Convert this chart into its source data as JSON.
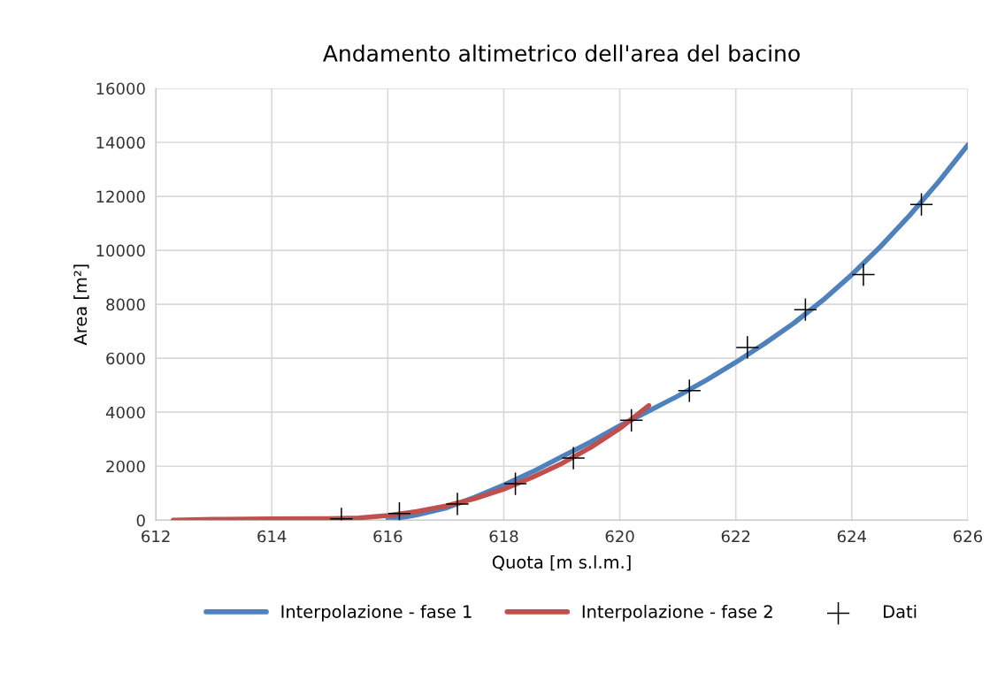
{
  "chart_data": {
    "type": "line",
    "title": "Andamento altimetrico dell'area del bacino",
    "xlabel": "Quota [m s.l.m.]",
    "ylabel": "Area [m²]",
    "xlim": [
      612,
      626
    ],
    "xticks": [
      612,
      614,
      616,
      618,
      620,
      622,
      624,
      626
    ],
    "ylim": [
      0,
      16000
    ],
    "yticks": [
      0,
      2000,
      4000,
      6000,
      8000,
      10000,
      12000,
      14000,
      16000
    ],
    "grid": true,
    "legend": "bottom",
    "series": [
      {
        "name": "Interpolazione - fase 1",
        "color": "#4f81bd",
        "marker": "none",
        "x": [
          616,
          616.5,
          617,
          617.5,
          618,
          618.5,
          619,
          619.5,
          620,
          620.5,
          621,
          621.5,
          622,
          622.5,
          623,
          623.5,
          624,
          624.5,
          625,
          625.5,
          626
        ],
        "values": [
          0,
          200,
          450,
          850,
          1300,
          1800,
          2350,
          2900,
          3500,
          4050,
          4600,
          5200,
          5850,
          6550,
          7300,
          8150,
          9100,
          10150,
          11300,
          12550,
          13900
        ]
      },
      {
        "name": "Interpolazione - fase 2",
        "color": "#c0504d",
        "marker": "none",
        "x": [
          612.3,
          613,
          614,
          615,
          615.5,
          616,
          616.5,
          617,
          617.5,
          618,
          618.5,
          619,
          619.5,
          620,
          620.5
        ],
        "values": [
          0,
          30,
          50,
          60,
          80,
          170,
          320,
          530,
          800,
          1150,
          1600,
          2100,
          2700,
          3400,
          4250
        ]
      },
      {
        "name": "Dati",
        "type": "scatter",
        "color": "#000000",
        "marker": "cross",
        "x": [
          615.2,
          616.2,
          617.2,
          618.2,
          619.2,
          620.2,
          621.2,
          622.2,
          623.2,
          624.2,
          625.2
        ],
        "values": [
          50,
          250,
          600,
          1350,
          2300,
          3700,
          4800,
          6400,
          7800,
          9100,
          11700
        ]
      }
    ]
  }
}
